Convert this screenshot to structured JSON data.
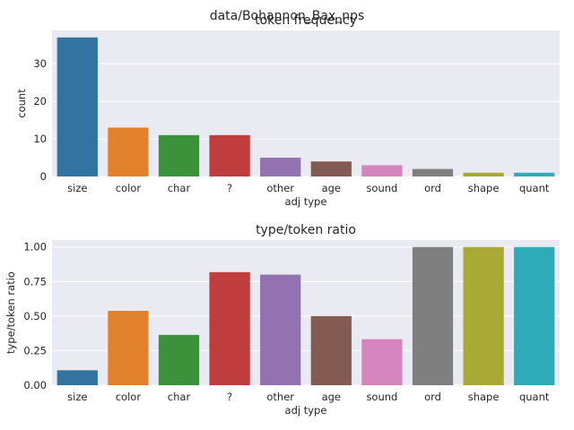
{
  "figure": {
    "suptitle": "data/Bohannon_Bax_nps"
  },
  "colors": {
    "axes_bg": "#eaeaf2",
    "grid": "#ffffff",
    "palette": [
      "#3274a1",
      "#e1812c",
      "#3a923a",
      "#c03d3e",
      "#9372b2",
      "#845b53",
      "#d684bd",
      "#7f7f7f",
      "#a9aa35",
      "#2eabb8"
    ]
  },
  "chart_data": [
    {
      "type": "bar",
      "title": "token frequency",
      "xlabel": "adj type",
      "ylabel": "count",
      "categories": [
        "size",
        "color",
        "char",
        "?",
        "other",
        "age",
        "sound",
        "ord",
        "shape",
        "quant"
      ],
      "values": [
        37,
        13,
        11,
        11,
        5,
        4,
        3,
        2,
        1,
        1
      ],
      "ylim": [
        0,
        38.85
      ],
      "yticks": [
        0,
        10,
        20,
        30
      ],
      "ytick_labels": [
        "0",
        "10",
        "20",
        "30"
      ],
      "grid": true,
      "legend": "none"
    },
    {
      "type": "bar",
      "title": "type/token ratio",
      "xlabel": "adj type",
      "ylabel": "type/token ratio",
      "categories": [
        "size",
        "color",
        "char",
        "?",
        "other",
        "age",
        "sound",
        "ord",
        "shape",
        "quant"
      ],
      "values": [
        0.108,
        0.538,
        0.364,
        0.818,
        0.8,
        0.5,
        0.333,
        1.0,
        1.0,
        1.0
      ],
      "ylim": [
        0,
        1.05
      ],
      "yticks": [
        0,
        0.25,
        0.5,
        0.75,
        1.0
      ],
      "ytick_labels": [
        "0.00",
        "0.25",
        "0.50",
        "0.75",
        "1.00"
      ],
      "grid": true,
      "legend": "none"
    }
  ]
}
